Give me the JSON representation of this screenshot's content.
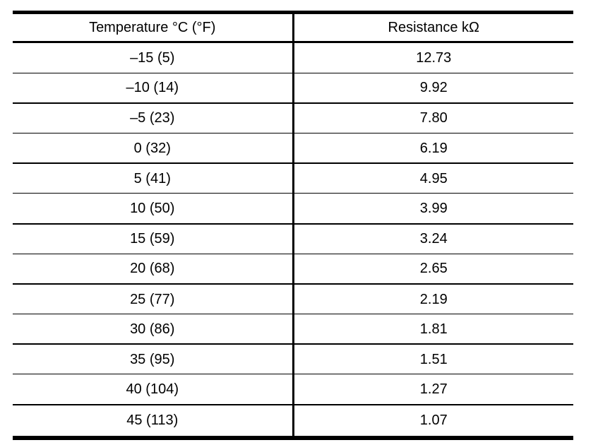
{
  "style": {
    "background_color": "#ffffff",
    "line_color": "#000000",
    "text_color": "#000000"
  },
  "chart_data": {
    "type": "table",
    "columns": [
      "Temperature °C (°F)",
      "Resistance kΩ"
    ],
    "rows": [
      [
        "–15 (5)",
        "12.73"
      ],
      [
        "–10 (14)",
        "9.92"
      ],
      [
        "–5 (23)",
        "7.80"
      ],
      [
        "0 (32)",
        "6.19"
      ],
      [
        "5 (41)",
        "4.95"
      ],
      [
        "10 (50)",
        "3.99"
      ],
      [
        "15 (59)",
        "3.24"
      ],
      [
        "20 (68)",
        "2.65"
      ],
      [
        "25 (77)",
        "2.19"
      ],
      [
        "30 (86)",
        "1.81"
      ],
      [
        "35 (95)",
        "1.51"
      ],
      [
        "40 (104)",
        "1.27"
      ],
      [
        "45 (113)",
        "1.07"
      ]
    ],
    "temperature_c": [
      -15,
      -10,
      -5,
      0,
      5,
      10,
      15,
      20,
      25,
      30,
      35,
      40,
      45
    ],
    "temperature_f": [
      5,
      14,
      23,
      32,
      41,
      50,
      59,
      68,
      77,
      86,
      95,
      104,
      113
    ],
    "resistance_kohm": [
      12.73,
      9.92,
      7.8,
      6.19,
      4.95,
      3.99,
      3.24,
      2.65,
      2.19,
      1.81,
      1.51,
      1.27,
      1.07
    ]
  }
}
